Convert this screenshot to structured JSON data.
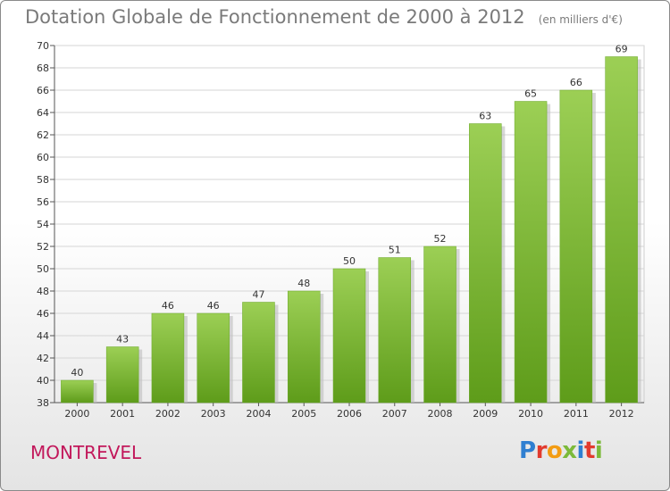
{
  "chart_data": {
    "type": "bar",
    "title": "Dotation Globale de Fonctionnement de 2000 à 2012",
    "subtitle": "(en milliers d'€)",
    "categories": [
      "2000",
      "2001",
      "2002",
      "2003",
      "2004",
      "2005",
      "2006",
      "2007",
      "2008",
      "2009",
      "2010",
      "2011",
      "2012"
    ],
    "values": [
      40,
      43,
      46,
      46,
      47,
      48,
      50,
      51,
      52,
      63,
      65,
      66,
      69
    ],
    "ylim": [
      38,
      70
    ],
    "yticks": [
      38,
      40,
      42,
      44,
      46,
      48,
      50,
      52,
      54,
      56,
      58,
      60,
      62,
      64,
      66,
      68,
      70
    ],
    "grid": true,
    "bar_color": "#7cba3a"
  },
  "footer": {
    "town": "MONTREVEL",
    "logo": "Proxiti"
  }
}
